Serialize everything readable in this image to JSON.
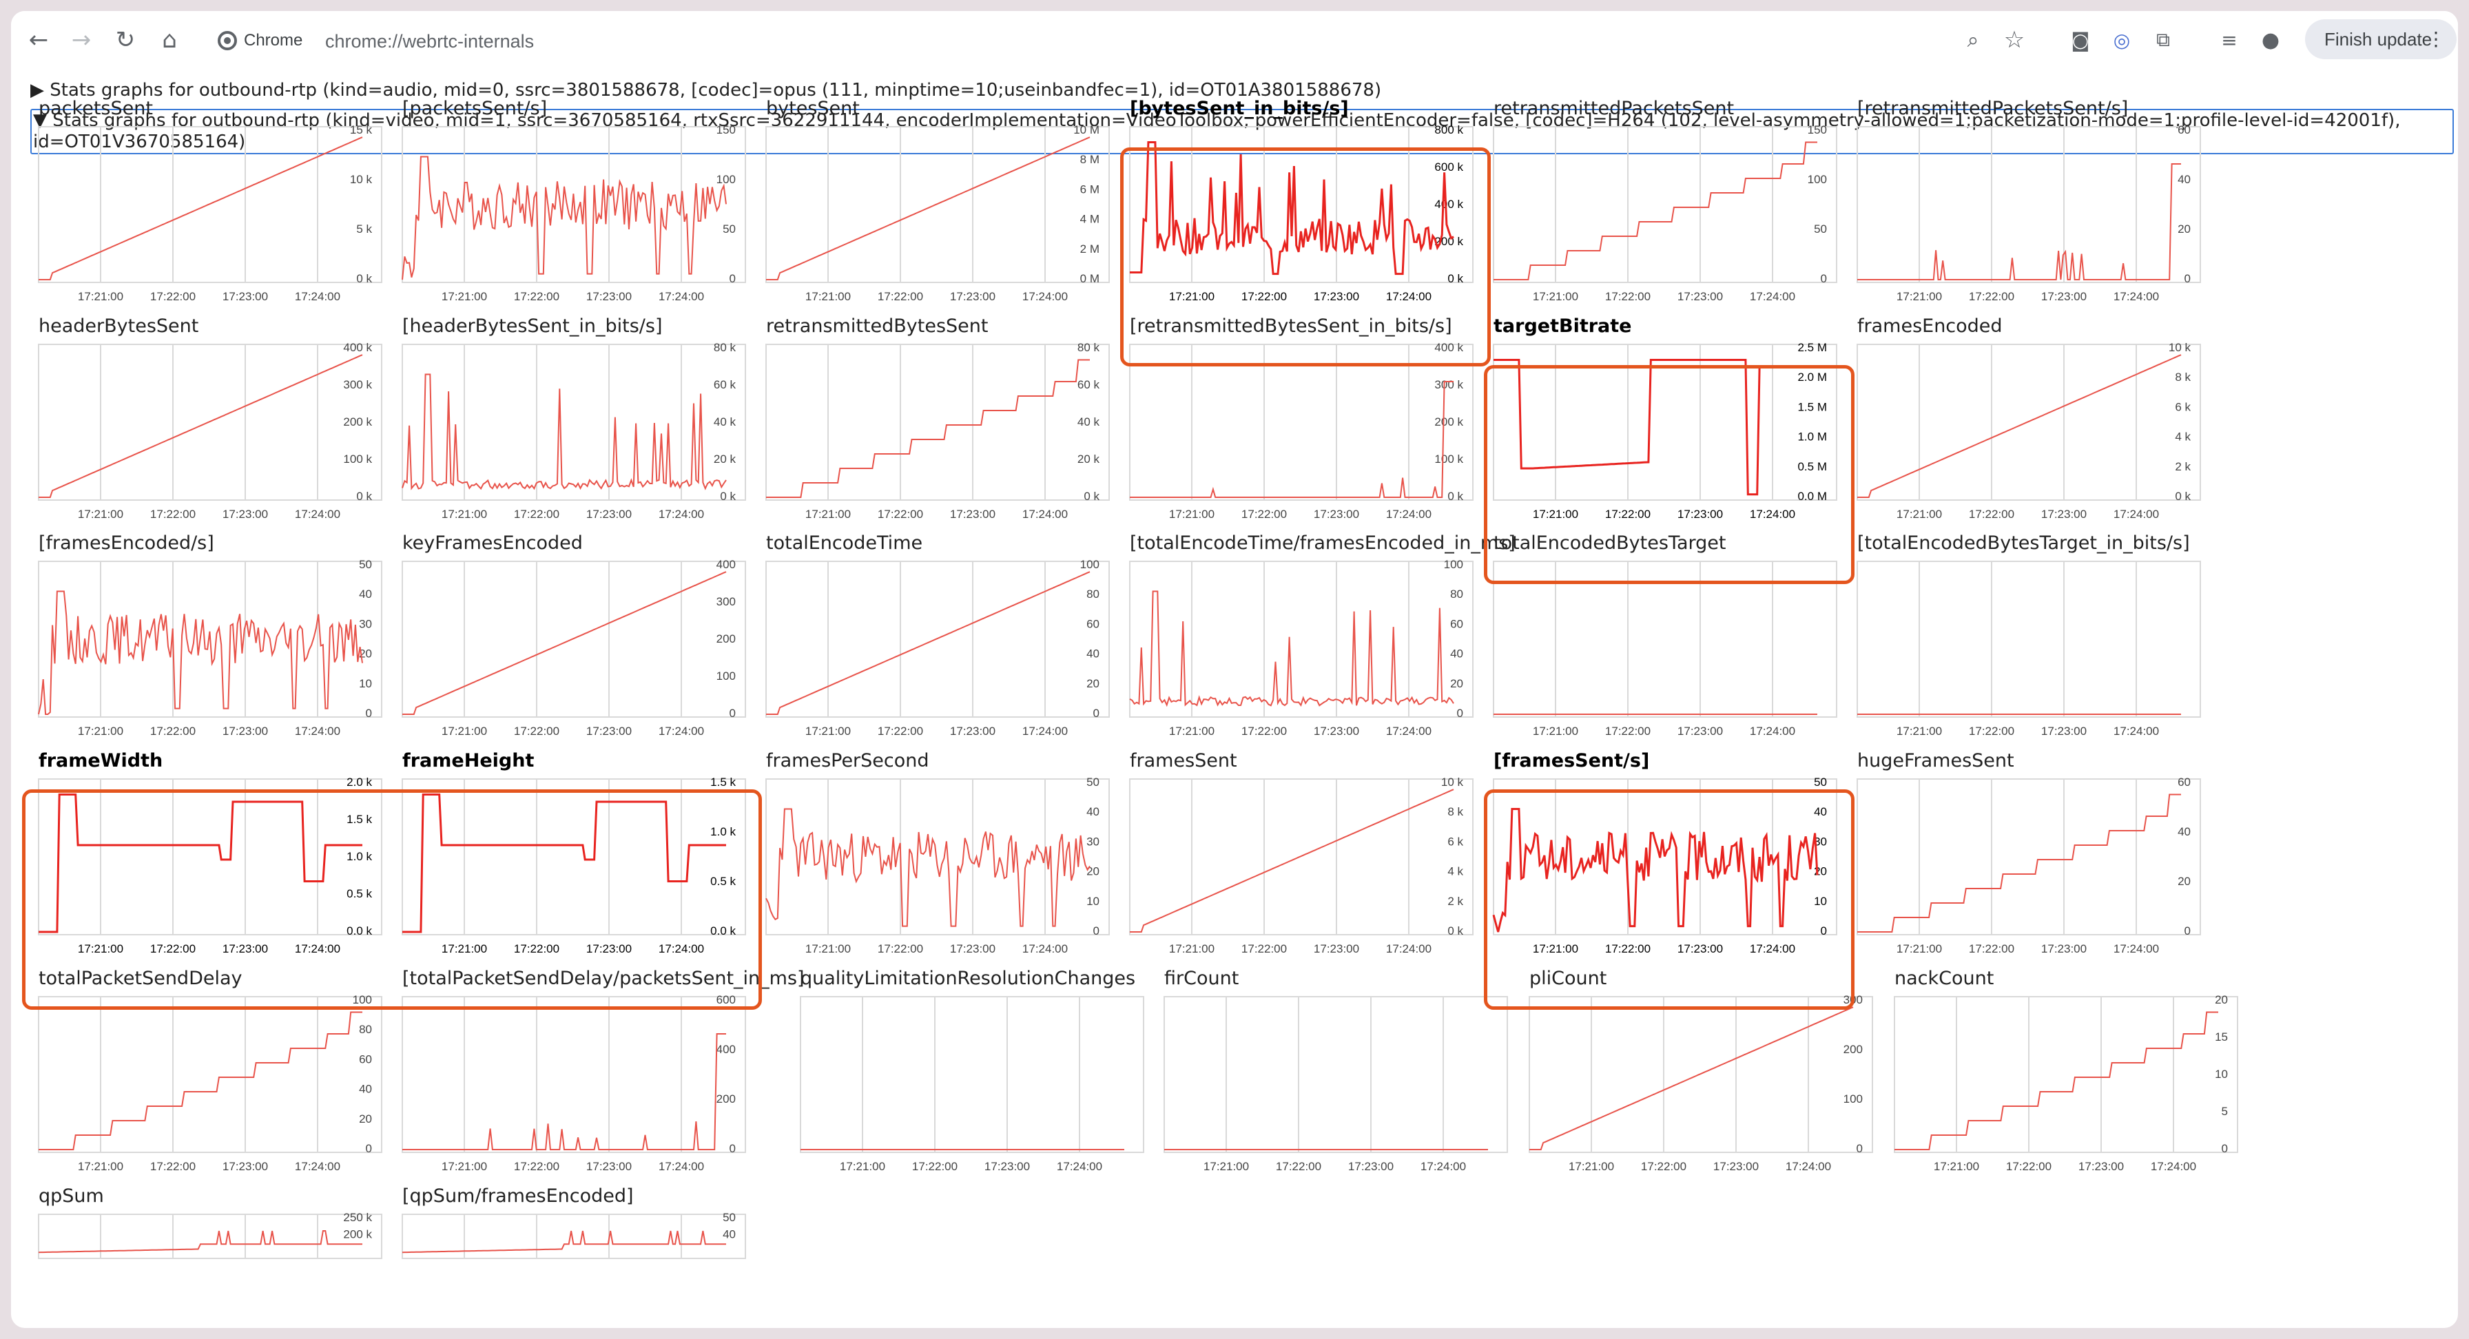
{
  "browser": {
    "chip_label": "Chrome",
    "url": "chrome://webrtc-internals",
    "finish_update_label": "Finish update",
    "icons": [
      "back-icon",
      "forward-icon",
      "reload-icon",
      "home-icon",
      "zoom-icon",
      "bookmark-star-icon",
      "camera-icon",
      "cast-icon",
      "extensions-icon",
      "media-controls-icon",
      "profile-icon",
      "menu-dots-icon"
    ]
  },
  "sections": [
    {
      "label": "▶ Stats graphs for outbound-rtp (kind=audio, mid=0, ssrc=3801588678, [codec]=opus (111, minptime=10;useinbandfec=1), id=OT01A3801588678)",
      "expanded": false
    },
    {
      "label": "▼ Stats graphs for outbound-rtp (kind=video, mid=1, ssrc=3670585164, rtxSsrc=3622911144, encoderImplementation=VideoToolbox, powerEfficientEncoder=false, [codec]=H264 (102, level-asymmetry-allowed=1;packetization-mode=1;profile-level-id=42001f), id=OT01V3670585164)",
      "expanded": true
    }
  ],
  "colors": {
    "line": "#e8534a",
    "line_highlight": "#e8231f",
    "grid": "#d9d9d9",
    "highlight_border": "#e4551e",
    "selection": "#3b7bd8"
  },
  "time_ticks": [
    "17:21:00",
    "17:22:00",
    "17:23:00",
    "17:24:00"
  ],
  "graphs": [
    {
      "title": "packetsSent",
      "yticks": [
        "15 k",
        "10 k",
        "5 k",
        "0 k"
      ],
      "shape": "ramp",
      "bold": false
    },
    {
      "title": "[packetsSent/s]",
      "yticks": [
        "150",
        "100",
        "50",
        "0"
      ],
      "shape": "noisy",
      "bold": false
    },
    {
      "title": "bytesSent",
      "yticks": [
        "10 M",
        "8 M",
        "6 M",
        "4 M",
        "2 M",
        "0 M"
      ],
      "shape": "ramp",
      "bold": false
    },
    {
      "title": "[bytesSent_in_bits/s]",
      "yticks": [
        "800 k",
        "600 k",
        "400 k",
        "200 k",
        "0 k"
      ],
      "shape": "spiky",
      "bold": true,
      "highlight": true
    },
    {
      "title": "retransmittedPacketsSent",
      "yticks": [
        "150",
        "100",
        "50",
        "0"
      ],
      "shape": "steps",
      "bold": false
    },
    {
      "title": "[retransmittedPacketsSent/s]",
      "yticks": [
        "60",
        "40",
        "20",
        "0"
      ],
      "shape": "sparse",
      "bold": false
    },
    {
      "title": "headerBytesSent",
      "yticks": [
        "400 k",
        "300 k",
        "200 k",
        "100 k",
        "0 k"
      ],
      "shape": "ramp",
      "bold": false
    },
    {
      "title": "[headerBytesSent_in_bits/s]",
      "yticks": [
        "80 k",
        "60 k",
        "40 k",
        "20 k",
        "0 k"
      ],
      "shape": "lowspikes",
      "bold": false
    },
    {
      "title": "retransmittedBytesSent",
      "yticks": [
        "80 k",
        "60 k",
        "40 k",
        "20 k",
        "0 k"
      ],
      "shape": "steps",
      "bold": false
    },
    {
      "title": "[retransmittedBytesSent_in_bits/s]",
      "yticks": [
        "400 k",
        "300 k",
        "200 k",
        "100 k",
        "0 k"
      ],
      "shape": "sparse",
      "bold": false
    },
    {
      "title": "targetBitrate",
      "yticks": [
        "2.5 M",
        "2.0 M",
        "1.5 M",
        "1.0 M",
        "0.5 M",
        "0.0 M"
      ],
      "shape": "blocks",
      "bold": true,
      "highlight": true
    },
    {
      "title": "framesEncoded",
      "yticks": [
        "10 k",
        "8 k",
        "6 k",
        "4 k",
        "2 k",
        "0 k"
      ],
      "shape": "ramp",
      "bold": false
    },
    {
      "title": "[framesEncoded/s]",
      "yticks": [
        "50",
        "40",
        "30",
        "20",
        "10",
        "0"
      ],
      "shape": "noisy",
      "bold": false
    },
    {
      "title": "keyFramesEncoded",
      "yticks": [
        "400",
        "300",
        "200",
        "100",
        "0"
      ],
      "shape": "ramp",
      "bold": false
    },
    {
      "title": "totalEncodeTime",
      "yticks": [
        "100",
        "80",
        "60",
        "40",
        "20",
        "0"
      ],
      "shape": "ramp",
      "bold": false
    },
    {
      "title": "[totalEncodeTime/framesEncoded_in_ms]",
      "yticks": [
        "100",
        "80",
        "60",
        "40",
        "20",
        "0"
      ],
      "shape": "lowspikes",
      "bold": false
    },
    {
      "title": "totalEncodedBytesTarget",
      "yticks": [],
      "shape": "flat",
      "bold": false
    },
    {
      "title": "[totalEncodedBytesTarget_in_bits/s]",
      "yticks": [],
      "shape": "flat",
      "bold": false
    },
    {
      "title": "frameWidth",
      "yticks": [
        "2.0 k",
        "1.5 k",
        "1.0 k",
        "0.5 k",
        "0.0 k"
      ],
      "shape": "stepres",
      "bold": true,
      "highlight": true
    },
    {
      "title": "frameHeight",
      "yticks": [
        "1.5 k",
        "1.0 k",
        "0.5 k",
        "0.0 k"
      ],
      "shape": "stepres",
      "bold": true
    },
    {
      "title": "framesPerSecond",
      "yticks": [
        "50",
        "40",
        "30",
        "20",
        "10",
        "0"
      ],
      "shape": "noisy",
      "bold": false
    },
    {
      "title": "framesSent",
      "yticks": [
        "10 k",
        "8 k",
        "6 k",
        "4 k",
        "2 k",
        "0 k"
      ],
      "shape": "ramp",
      "bold": false
    },
    {
      "title": "[framesSent/s]",
      "yticks": [
        "50",
        "40",
        "30",
        "20",
        "10",
        "0"
      ],
      "shape": "noisy",
      "bold": true,
      "highlight": true
    },
    {
      "title": "hugeFramesSent",
      "yticks": [
        "60",
        "40",
        "20",
        "0"
      ],
      "shape": "steps",
      "bold": false
    },
    {
      "title": "totalPacketSendDelay",
      "yticks": [
        "100",
        "80",
        "60",
        "40",
        "20",
        "0"
      ],
      "shape": "steps",
      "bold": false
    },
    {
      "title": "[totalPacketSendDelay/packetsSent_in_ms]",
      "yticks": [
        "600",
        "400",
        "200",
        "0"
      ],
      "shape": "sparse",
      "bold": false
    },
    {
      "title": "qualityLimitationResolutionChanges",
      "yticks": [],
      "shape": "flat",
      "bold": false
    },
    {
      "title": "firCount",
      "yticks": [],
      "shape": "flat",
      "bold": false
    },
    {
      "title": "pliCount",
      "yticks": [
        "300",
        "200",
        "100",
        "0"
      ],
      "shape": "ramp",
      "bold": false
    },
    {
      "title": "nackCount",
      "yticks": [
        "20",
        "15",
        "10",
        "5",
        "0"
      ],
      "shape": "steps",
      "bold": false
    },
    {
      "title": "qpSum",
      "yticks": [
        "250 k",
        "200 k"
      ],
      "shape": "partial",
      "bold": false
    },
    {
      "title": "[qpSum/framesEncoded]",
      "yticks": [
        "50",
        "40"
      ],
      "shape": "partial",
      "bold": false
    }
  ]
}
